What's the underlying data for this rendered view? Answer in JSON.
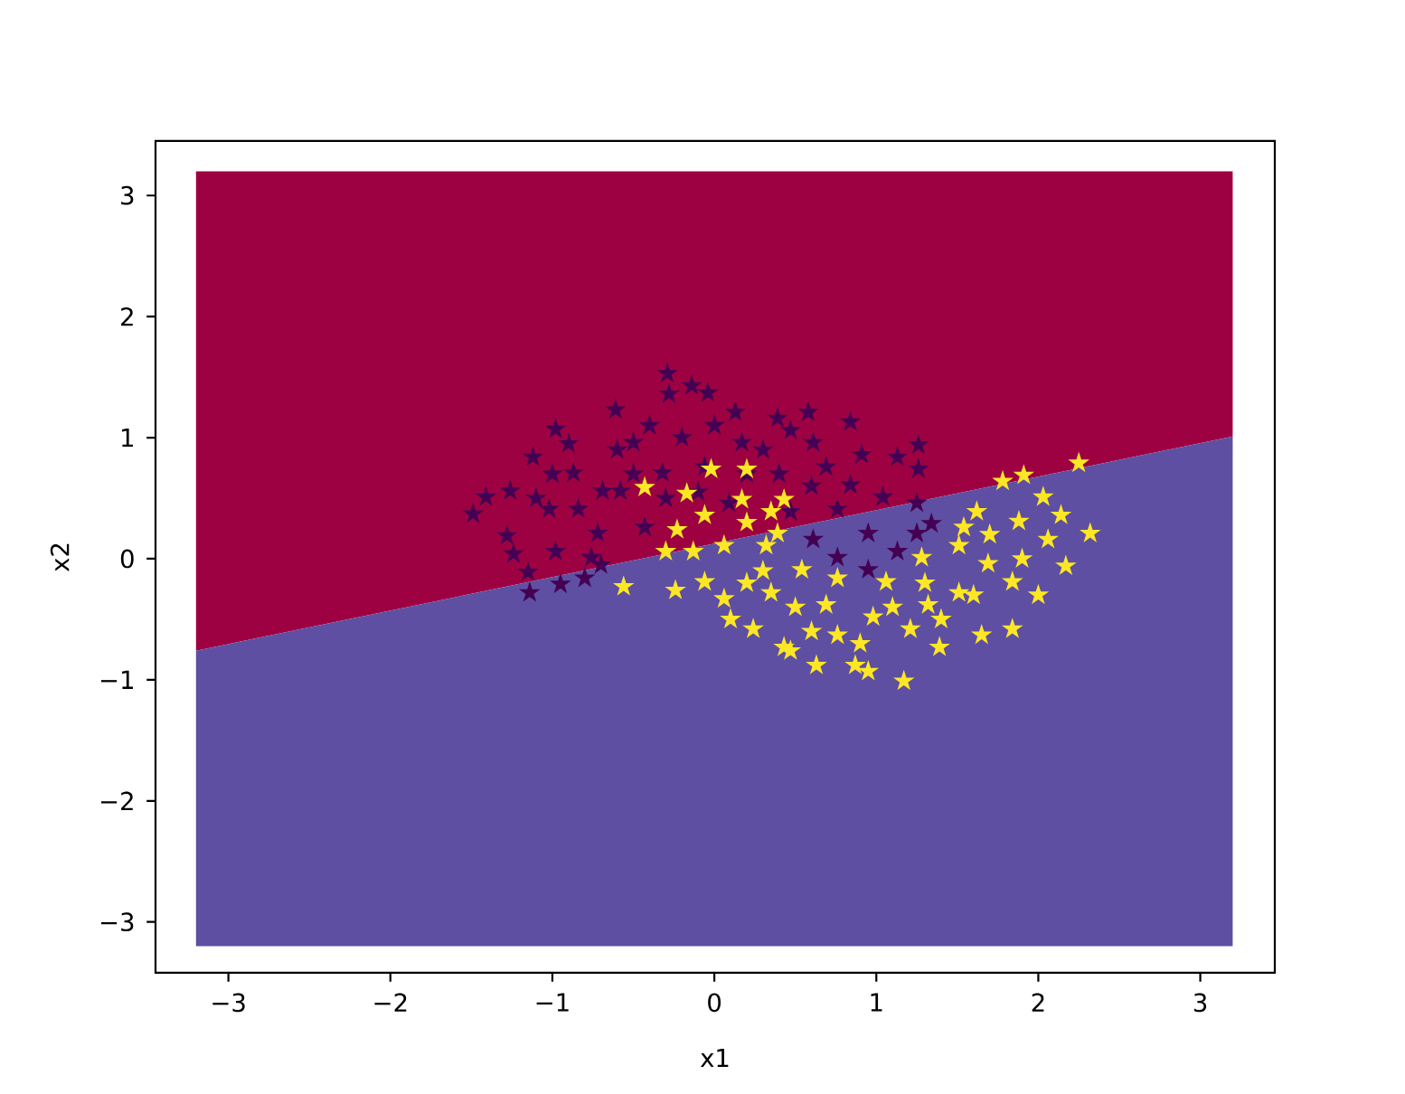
{
  "chart_data": {
    "type": "scatter",
    "xlabel": "x1",
    "ylabel": "x2",
    "xlim": [
      -3.45,
      3.46
    ],
    "ylim": [
      -3.42,
      3.45
    ],
    "xticks": [
      {
        "value": -3,
        "label": "−3"
      },
      {
        "value": -2,
        "label": "−2"
      },
      {
        "value": -1,
        "label": "−1"
      },
      0,
      1,
      2,
      3
    ],
    "yticks": [
      {
        "value": -3,
        "label": "−3"
      },
      {
        "value": -2,
        "label": "−2"
      },
      {
        "value": -1,
        "label": "−1"
      },
      0,
      1,
      2,
      3
    ],
    "series": [
      {
        "type": "area",
        "color": "#9e0142",
        "x": [
          -3.2,
          3.2,
          3.2,
          -3.2
        ],
        "values": [
          3.2,
          3.2,
          1.01,
          -0.76
        ]
      },
      {
        "type": "area",
        "color": "#5e4fa2",
        "x": [
          -3.2,
          3.2,
          3.2,
          -3.2
        ],
        "values": [
          -0.76,
          1.01,
          -3.2,
          -3.2
        ]
      },
      {
        "color": "#440154",
        "marker": "star",
        "x": [
          -0.29,
          -0.14,
          -0.04,
          -0.28,
          -0.98,
          -0.61,
          -1.12,
          -1.26,
          -1.41,
          -1.49,
          -1.28,
          -1.24,
          -1.15,
          -1.14,
          -0.95,
          -0.8,
          -0.43,
          -0.72,
          -0.87,
          -0.5,
          0.13,
          0.39,
          0.17,
          -0.06,
          -0.32,
          -0.69,
          -1.02,
          -0.98,
          -0.76,
          -0.84,
          -0.58,
          0.09,
          0.58,
          0.84,
          1.26,
          1.13,
          1.26,
          0.91,
          0.61,
          0.47,
          0.47,
          0.76,
          1.04,
          1.25,
          1.34,
          1.25,
          1.13,
          0.95,
          0.76,
          0.61,
          0.95,
          0.84,
          0.69,
          0.2,
          0.3,
          -0.2,
          0.0,
          0.6,
          -0.5,
          -0.3,
          -0.9,
          -0.1,
          -0.6,
          -1.0,
          -0.4,
          0.4,
          -1.1,
          -0.7
        ],
        "values": [
          1.53,
          1.43,
          1.37,
          1.36,
          1.07,
          1.23,
          0.84,
          0.56,
          0.51,
          0.37,
          0.19,
          0.04,
          -0.11,
          -0.28,
          -0.21,
          -0.16,
          0.26,
          0.21,
          0.71,
          0.96,
          1.21,
          1.16,
          0.96,
          0.76,
          0.71,
          0.56,
          0.41,
          0.06,
          0.01,
          0.41,
          0.56,
          0.46,
          1.21,
          1.13,
          0.94,
          0.84,
          0.74,
          0.86,
          0.96,
          1.06,
          0.39,
          0.41,
          0.51,
          0.46,
          0.29,
          0.21,
          0.06,
          -0.09,
          0.01,
          0.16,
          0.21,
          0.61,
          0.76,
          0.7,
          0.9,
          1.0,
          1.1,
          0.6,
          0.7,
          0.5,
          0.95,
          0.55,
          0.9,
          0.7,
          1.1,
          0.7,
          0.5,
          -0.05
        ]
      },
      {
        "color": "#fde725",
        "marker": "star",
        "x": [
          -0.56,
          -0.24,
          -0.3,
          -0.23,
          -0.02,
          0.2,
          -0.43,
          -0.17,
          0.17,
          -0.06,
          0.35,
          -0.13,
          0.06,
          0.32,
          0.06,
          0.24,
          0.43,
          -0.06,
          0.35,
          2.25,
          1.91,
          1.78,
          2.32,
          2.17,
          2.03,
          1.54,
          1.62,
          1.51,
          1.84,
          1.84,
          1.65,
          1.39,
          1.17,
          0.95,
          0.87,
          0.63,
          0.47,
          1.28,
          1.06,
          0.76,
          0.54,
          0.69,
          0.98,
          1.32,
          1.51,
          1.69,
          1.88,
          2.14,
          2.06,
          0.43,
          0.39,
          1.21,
          0.76,
          0.2,
          0.5,
          0.9,
          1.1,
          1.4,
          1.6,
          0.1,
          0.3,
          1.7,
          1.9,
          2.0,
          1.3,
          0.6,
          0.2
        ],
        "values": [
          -0.23,
          -0.26,
          0.06,
          0.24,
          0.74,
          0.74,
          0.59,
          0.54,
          0.49,
          0.36,
          0.39,
          0.06,
          0.11,
          0.11,
          -0.33,
          -0.58,
          -0.73,
          -0.19,
          -0.28,
          0.79,
          0.69,
          0.64,
          0.21,
          -0.06,
          0.51,
          0.26,
          0.39,
          0.11,
          -0.19,
          -0.58,
          -0.63,
          -0.73,
          -1.01,
          -0.93,
          -0.88,
          -0.88,
          -0.76,
          0.01,
          -0.19,
          -0.16,
          -0.09,
          -0.38,
          -0.48,
          -0.38,
          -0.28,
          -0.04,
          0.31,
          0.36,
          0.16,
          0.49,
          0.21,
          -0.58,
          -0.63,
          -0.2,
          -0.4,
          -0.7,
          -0.4,
          -0.5,
          -0.3,
          -0.5,
          -0.1,
          0.2,
          0.0,
          -0.3,
          -0.2,
          -0.6,
          0.3
        ]
      }
    ]
  }
}
